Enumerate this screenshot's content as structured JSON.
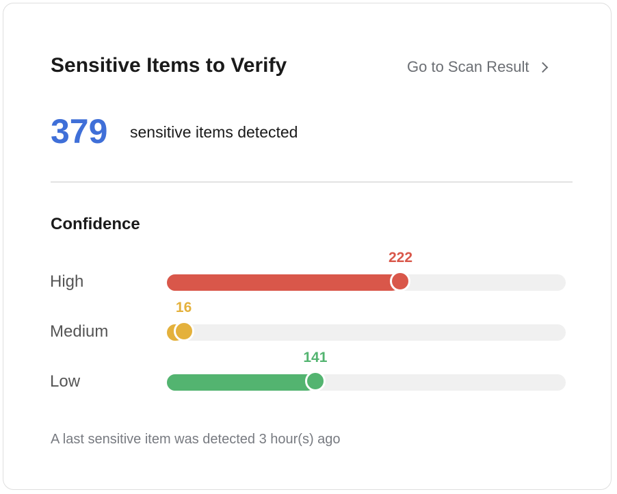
{
  "header": {
    "title": "Sensitive Items to Verify",
    "link_label": "Go to Scan Result",
    "link_icon": "chevron-right-icon"
  },
  "summary": {
    "count": "379",
    "label": "sensitive items detected",
    "color": "#3f6fd8"
  },
  "confidence": {
    "title": "Confidence",
    "total": 379,
    "rows": [
      {
        "label": "High",
        "value": 222,
        "value_text": "222",
        "color": "#d9574a"
      },
      {
        "label": "Medium",
        "value": 16,
        "value_text": "16",
        "color": "#e4b13c"
      },
      {
        "label": "Low",
        "value": 141,
        "value_text": "141",
        "color": "#53b470"
      }
    ]
  },
  "footer": {
    "text": "A last sensitive item was detected 3 hour(s) ago"
  }
}
